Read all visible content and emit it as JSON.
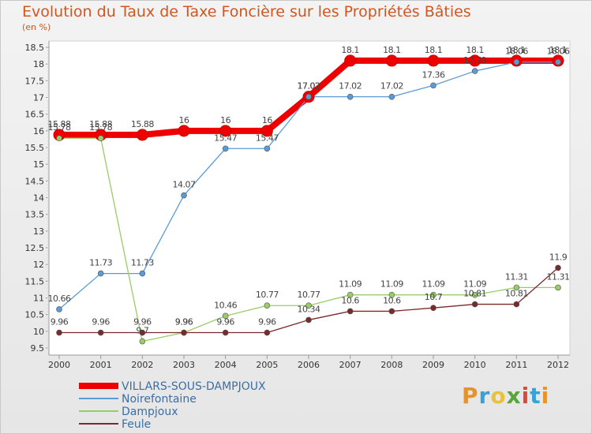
{
  "header": {
    "title": "Evolution du Taux de Taxe Foncière sur les Propriétés Bâties",
    "subtitle": "(en %)"
  },
  "logo": {
    "text": "Proxiti",
    "colors": [
      "#e8922c",
      "#3aa0d8",
      "#e8c23a",
      "#5aa43c",
      "#d84a3a",
      "#3aa0d8",
      "#e8922c"
    ]
  },
  "chart_data": {
    "type": "line",
    "title": "Evolution du Taux de Taxe Foncière sur les Propriétés Bâties",
    "ylabel": "(en %)",
    "xlabel": "",
    "x": [
      "2000",
      "2001",
      "2002",
      "2003",
      "2004",
      "2005",
      "2006",
      "2007",
      "2008",
      "2009",
      "2010",
      "2011",
      "2012"
    ],
    "ylim": [
      9.5,
      18.5
    ],
    "yticks": [
      "9.5",
      "10",
      "10.5",
      "11",
      "11.5",
      "12",
      "12.5",
      "13",
      "13.5",
      "14",
      "14.5",
      "15",
      "15.5",
      "16",
      "16.5",
      "17",
      "17.5",
      "18",
      "18.5"
    ],
    "grid": false,
    "legend_position": "bottom-left",
    "series": [
      {
        "name": "VILLARS-SOUS-DAMPJOUX",
        "color": "#ee0000",
        "values": [
          15.88,
          15.88,
          15.88,
          16,
          16,
          16,
          17.02,
          18.1,
          18.1,
          18.1,
          18.1,
          18.1,
          18.1
        ],
        "labels": [
          "15.88",
          "15.88",
          "15.88",
          "16",
          "16",
          "16",
          "17.02",
          "18.1",
          "18.1",
          "18.1",
          "18.1",
          "18.1",
          "18.1"
        ]
      },
      {
        "name": "Noirefontaine",
        "color": "#5b9bd5",
        "values": [
          10.66,
          11.73,
          11.73,
          14.07,
          15.47,
          15.47,
          17.02,
          17.02,
          17.02,
          17.36,
          17.79,
          18.06,
          18.06
        ],
        "labels": [
          "10.66",
          "11.73",
          "11.73",
          "14.07",
          "15.47",
          "15.47",
          "17.02",
          "17.02",
          "17.02",
          "17.36",
          "17.79",
          "18.06",
          "18.06"
        ]
      },
      {
        "name": "Dampjoux",
        "color": "#99cc66",
        "values": [
          15.78,
          15.78,
          9.7,
          9.96,
          10.46,
          10.77,
          10.77,
          11.09,
          11.09,
          11.09,
          11.09,
          11.31,
          11.31
        ],
        "labels": [
          "15.78",
          "15.78",
          "9.7",
          "9.96",
          "10.46",
          "10.77",
          "10.77",
          "11.09",
          "11.09",
          "11.09",
          "11.09",
          "11.31",
          "11.31"
        ]
      },
      {
        "name": "Feule",
        "color": "#7a2a2a",
        "values": [
          9.96,
          9.96,
          9.96,
          9.96,
          9.96,
          9.96,
          10.34,
          10.6,
          10.6,
          10.7,
          10.81,
          10.81,
          11.9
        ],
        "labels": [
          "9.96",
          "9.96",
          "9.96",
          "9.96",
          "9.96",
          "9.96",
          "10.34",
          "10.6",
          "10.6",
          "10.7",
          "10.81",
          "10.81",
          "11.9"
        ]
      }
    ]
  }
}
